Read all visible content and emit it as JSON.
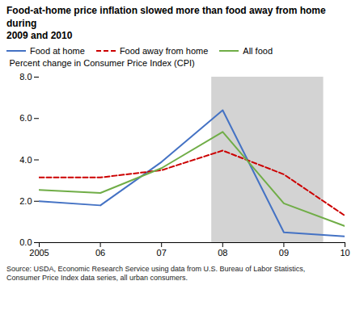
{
  "chart_data": {
    "type": "line",
    "title": "Food-at-home price inflation slowed more than food away from home during\n2009 and 2010",
    "ylabel": "Percent change in Consumer Price Index (CPI)",
    "source": "Source: USDA, Economic Research Service using data from U.S. Bureau of Labor Statistics,\nConsumer Price Index data series, all urban consumers.",
    "x": [
      2005,
      2006,
      2007,
      2008,
      2009,
      2010
    ],
    "series": [
      {
        "name": "Food at home",
        "color": "#4472C4",
        "line_style": "solid",
        "values": [
          2.0,
          1.8,
          3.9,
          6.4,
          0.5,
          0.3
        ]
      },
      {
        "name": "Food away from home",
        "color": "#CC0000",
        "line_style": "dashed",
        "values": [
          3.15,
          3.15,
          3.5,
          4.45,
          3.3,
          1.3
        ]
      },
      {
        "name": "All food",
        "color": "#70AD47",
        "line_style": "solid",
        "values": [
          2.55,
          2.4,
          3.6,
          5.35,
          1.9,
          0.8
        ]
      }
    ],
    "xlim": [
      2005,
      2010
    ],
    "xticks": [
      2005,
      {
        "value": 2006,
        "label": "06"
      },
      {
        "value": 2007,
        "label": "07"
      },
      {
        "value": 2008,
        "label": "08"
      },
      {
        "value": 2009,
        "label": "09"
      },
      {
        "value": 2010,
        "label": "10"
      }
    ],
    "ylim": [
      0.0,
      8.0
    ],
    "yticks": [
      {
        "value": 0.0,
        "label": "0.0"
      },
      {
        "value": 2.0,
        "label": "2.0"
      },
      {
        "value": 4.0,
        "label": "4.0"
      },
      {
        "value": 6.0,
        "label": "6.0"
      },
      {
        "value": 8.0,
        "label": "8.0"
      }
    ],
    "shade": [
      2007.82,
      2009.65
    ],
    "shade_color": "#D3D3D3",
    "grid": false,
    "legend": "top"
  }
}
